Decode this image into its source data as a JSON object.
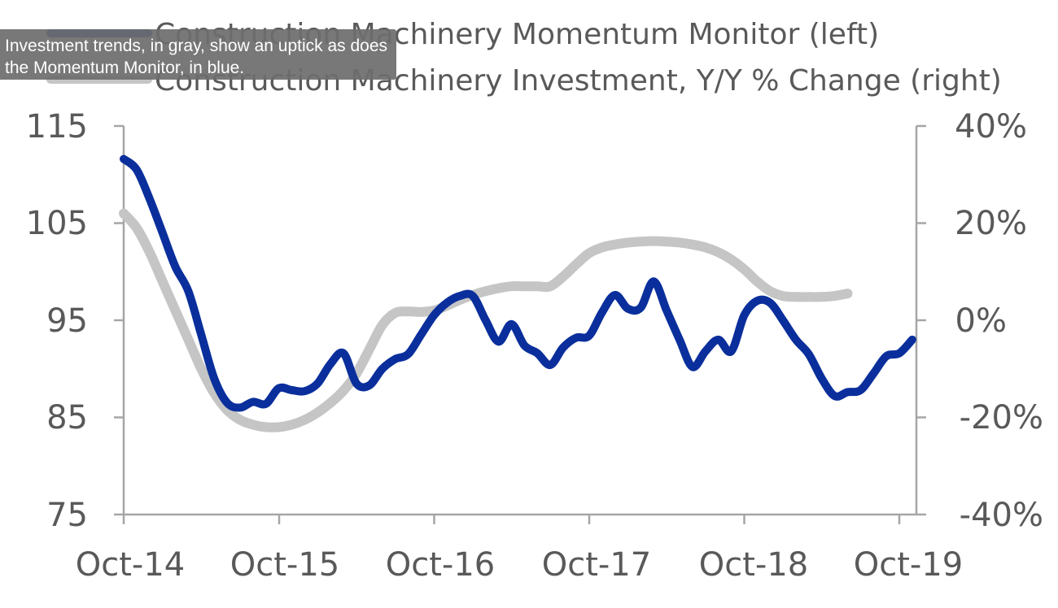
{
  "colors": {
    "momentum": "#0a2f9c",
    "investment": "#c5c5c5",
    "axis": "#a6a6a6",
    "text": "#595959"
  },
  "tooltip": {
    "text": "Investment trends, in gray, show an uptick as does the Momentum Monitor, in blue."
  },
  "chart_data": {
    "type": "line",
    "title": "",
    "x_ticks": [
      "Oct-14",
      "Oct-15",
      "Oct-16",
      "Oct-17",
      "Oct-18",
      "Oct-19"
    ],
    "x_range": [
      "2014-10",
      "2019-10"
    ],
    "y_left": {
      "ticks": [
        "115",
        "105",
        "95",
        "85",
        "75"
      ],
      "range": [
        75,
        115
      ]
    },
    "y_right": {
      "ticks": [
        "40%",
        "20%",
        "0%",
        "-20%",
        "-40%"
      ],
      "range": [
        -40,
        40
      ]
    },
    "grid": false,
    "legend_position": "top",
    "series": [
      {
        "name": "Construction Machinery Momentum Monitor (left)",
        "axis": "left",
        "color": "#0a2f9c",
        "points": [
          [
            "2014-10",
            111.6
          ],
          [
            "2014-11",
            110.5
          ],
          [
            "2014-12",
            107.5
          ],
          [
            "2015-01",
            104.0
          ],
          [
            "2015-02",
            100.5
          ],
          [
            "2015-03",
            98.0
          ],
          [
            "2015-04",
            93.5
          ],
          [
            "2015-05",
            89.0
          ],
          [
            "2015-06",
            86.5
          ],
          [
            "2015-07",
            86.0
          ],
          [
            "2015-08",
            86.6
          ],
          [
            "2015-09",
            86.4
          ],
          [
            "2015-10",
            88.0
          ],
          [
            "2015-11",
            87.8
          ],
          [
            "2015-12",
            87.7
          ],
          [
            "2016-01",
            88.5
          ],
          [
            "2016-02",
            90.5
          ],
          [
            "2016-03",
            91.6
          ],
          [
            "2016-04",
            88.5
          ],
          [
            "2016-05",
            88.3
          ],
          [
            "2016-06",
            90.0
          ],
          [
            "2016-07",
            91.0
          ],
          [
            "2016-08",
            91.5
          ],
          [
            "2016-09",
            93.5
          ],
          [
            "2016-10",
            95.5
          ],
          [
            "2016-11",
            96.8
          ],
          [
            "2016-12",
            97.5
          ],
          [
            "2017-01",
            97.5
          ],
          [
            "2017-02",
            95.0
          ],
          [
            "2017-03",
            92.8
          ],
          [
            "2017-04",
            94.6
          ],
          [
            "2017-05",
            92.4
          ],
          [
            "2017-06",
            91.6
          ],
          [
            "2017-07",
            90.4
          ],
          [
            "2017-08",
            92.2
          ],
          [
            "2017-09",
            93.2
          ],
          [
            "2017-10",
            93.4
          ],
          [
            "2017-11",
            95.8
          ],
          [
            "2017-12",
            97.6
          ],
          [
            "2018-01",
            96.2
          ],
          [
            "2018-02",
            96.3
          ],
          [
            "2018-03",
            99.0
          ],
          [
            "2018-04",
            96.0
          ],
          [
            "2018-05",
            93.0
          ],
          [
            "2018-06",
            90.2
          ],
          [
            "2018-07",
            91.8
          ],
          [
            "2018-08",
            93.0
          ],
          [
            "2018-09",
            91.8
          ],
          [
            "2018-10",
            95.5
          ],
          [
            "2018-11",
            97.0
          ],
          [
            "2018-12",
            96.8
          ],
          [
            "2019-01",
            95.0
          ],
          [
            "2019-02",
            93.0
          ],
          [
            "2019-03",
            91.5
          ],
          [
            "2019-04",
            89.0
          ],
          [
            "2019-05",
            87.2
          ],
          [
            "2019-06",
            87.6
          ],
          [
            "2019-07",
            87.8
          ],
          [
            "2019-08",
            89.5
          ],
          [
            "2019-09",
            91.3
          ],
          [
            "2019-10",
            91.6
          ],
          [
            "2019-11",
            93.0
          ]
        ]
      },
      {
        "name": "Construction Machinery Investment, Y/Y % Change (right)",
        "axis": "right",
        "color": "#c5c5c5",
        "points": [
          [
            "2014-10",
            22.0
          ],
          [
            "2014-11",
            19.0
          ],
          [
            "2014-12",
            14.0
          ],
          [
            "2015-01",
            8.0
          ],
          [
            "2015-02",
            2.0
          ],
          [
            "2015-03",
            -4.0
          ],
          [
            "2015-04",
            -10.0
          ],
          [
            "2015-05",
            -15.0
          ],
          [
            "2015-06",
            -18.5
          ],
          [
            "2015-07",
            -20.5
          ],
          [
            "2015-08",
            -21.5
          ],
          [
            "2015-09",
            -22.0
          ],
          [
            "2015-10",
            -22.0
          ],
          [
            "2015-11",
            -21.5
          ],
          [
            "2015-12",
            -20.5
          ],
          [
            "2016-01",
            -19.0
          ],
          [
            "2016-02",
            -17.0
          ],
          [
            "2016-03",
            -14.5
          ],
          [
            "2016-04",
            -11.0
          ],
          [
            "2016-05",
            -6.0
          ],
          [
            "2016-06",
            -1.0
          ],
          [
            "2016-07",
            1.5
          ],
          [
            "2016-08",
            1.8
          ],
          [
            "2016-09",
            1.7
          ],
          [
            "2016-10",
            2.0
          ],
          [
            "2016-11",
            3.0
          ],
          [
            "2016-12",
            4.2
          ],
          [
            "2017-01",
            5.2
          ],
          [
            "2017-02",
            6.0
          ],
          [
            "2017-03",
            6.6
          ],
          [
            "2017-04",
            7.0
          ],
          [
            "2017-05",
            7.0
          ],
          [
            "2017-06",
            7.0
          ],
          [
            "2017-07",
            7.0
          ],
          [
            "2017-08",
            9.0
          ],
          [
            "2017-09",
            11.5
          ],
          [
            "2017-10",
            13.8
          ],
          [
            "2017-11",
            15.0
          ],
          [
            "2017-12",
            15.6
          ],
          [
            "2018-01",
            16.0
          ],
          [
            "2018-02",
            16.2
          ],
          [
            "2018-03",
            16.3
          ],
          [
            "2018-04",
            16.2
          ],
          [
            "2018-05",
            16.0
          ],
          [
            "2018-06",
            15.6
          ],
          [
            "2018-07",
            15.0
          ],
          [
            "2018-08",
            14.0
          ],
          [
            "2018-09",
            12.5
          ],
          [
            "2018-10",
            10.5
          ],
          [
            "2018-11",
            8.0
          ],
          [
            "2018-12",
            6.0
          ],
          [
            "2019-01",
            5.0
          ],
          [
            "2019-02",
            4.8
          ],
          [
            "2019-03",
            4.8
          ],
          [
            "2019-04",
            4.8
          ],
          [
            "2019-05",
            5.0
          ],
          [
            "2019-06",
            5.5
          ]
        ]
      }
    ]
  }
}
